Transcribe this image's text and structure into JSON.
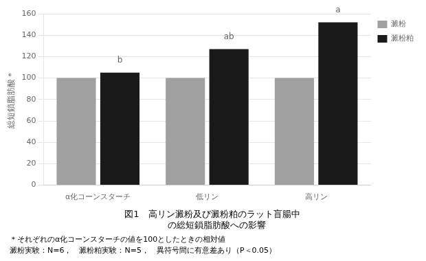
{
  "chart_data": {
    "type": "bar",
    "title": [
      "図1　高リン澱粉及び澱粉粕のラット盲腸中",
      "　の総短鎖脂肪酸への影響"
    ],
    "footnotes": [
      "＊それぞれのα化コーンスターチの値を100としたときの相対値",
      "澱粉実験：N=6，　澱粉粕実験：N=5，　異符号間に有意差あり（P＜0.05）"
    ],
    "y_label": "総短鎖脂肪酸＊",
    "categories": [
      "α化コーンスターチ",
      "低リン",
      "高リン"
    ],
    "series": [
      {
        "name": "澱粉",
        "color": "#a0a0a0",
        "values": [
          100,
          100,
          100
        ]
      },
      {
        "name": "澱粉粕",
        "color": "#1a1a1a",
        "values": [
          105,
          127,
          152
        ]
      }
    ],
    "annotations": [
      {
        "text": "b",
        "category": "α化コーンスターチ",
        "series": "澱粉粕",
        "y": 112
      },
      {
        "text": "ab",
        "category": "低リン",
        "series": "澱粉粕",
        "y": 134
      },
      {
        "text": "a",
        "category": "高リン",
        "series": "澱粉粕",
        "y": 159
      }
    ],
    "ylim": [
      0,
      160
    ],
    "yticks": [
      0,
      20,
      40,
      60,
      80,
      100,
      120,
      140,
      160
    ],
    "grid": true,
    "legend": "upper right"
  }
}
